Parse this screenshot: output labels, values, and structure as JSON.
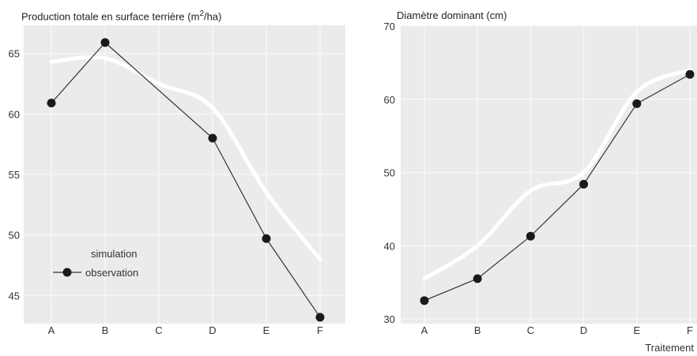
{
  "chart_data": [
    {
      "type": "line",
      "title_prefix": "Production totale en surface terrière (m",
      "title_sup": "2",
      "title_suffix": "/ha)",
      "categories": [
        "A",
        "B",
        "C",
        "D",
        "E",
        "F"
      ],
      "ylim": [
        43,
        67
      ],
      "yticks": [
        45,
        50,
        55,
        60,
        65
      ],
      "grid": true,
      "legend_position": "bottom-left",
      "series": [
        {
          "name": "simulation",
          "style": "smooth-white",
          "values": [
            64.3,
            64.6,
            62.5,
            60.5,
            53.5,
            48.0
          ]
        },
        {
          "name": "observation",
          "style": "line-markers",
          "values": [
            60.9,
            65.9,
            null,
            58.0,
            49.7,
            43.2
          ]
        }
      ],
      "legend": {
        "simulation": "simulation",
        "observation": "observation"
      }
    },
    {
      "type": "line",
      "title": "Diamètre dominant (cm)",
      "categories": [
        "A",
        "B",
        "C",
        "D",
        "E",
        "F"
      ],
      "ylim": [
        30,
        70
      ],
      "yticks": [
        30,
        40,
        50,
        60,
        70
      ],
      "grid": true,
      "xlabel": "Traitement",
      "series": [
        {
          "name": "simulation",
          "style": "smooth-white",
          "values": [
            35.5,
            40.0,
            47.5,
            50.0,
            61.0,
            64.0
          ]
        },
        {
          "name": "observation",
          "style": "line-markers",
          "values": [
            32.5,
            35.5,
            41.3,
            48.4,
            59.4,
            63.4
          ]
        }
      ]
    }
  ],
  "colors": {
    "panel_bg": "#ebebeb",
    "grid": "#f7f7f7",
    "simulation_line": "#ffffff",
    "observation_line": "#333333",
    "marker": "#1a1a1a"
  }
}
